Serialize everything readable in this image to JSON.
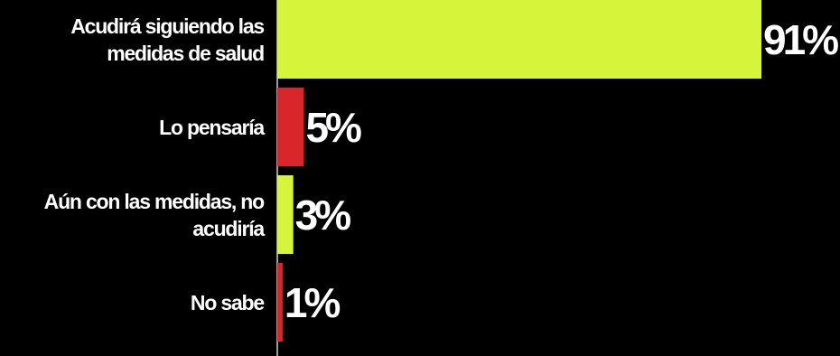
{
  "chart_data": {
    "type": "bar",
    "orientation": "horizontal",
    "categories": [
      "Acudirá siguiendo las medidas de salud",
      "Lo pensaría",
      "Aún con las medidas, no acudiría",
      "No sabe"
    ],
    "values": [
      91,
      5,
      3,
      1
    ],
    "value_labels": [
      "91%",
      "5%",
      "3%",
      "1%"
    ],
    "colors": [
      "#d6f53a",
      "#d9262b",
      "#d6f53a",
      "#d9262b"
    ]
  }
}
